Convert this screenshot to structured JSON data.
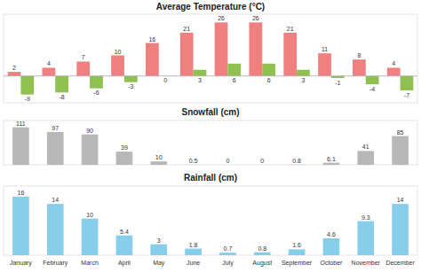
{
  "chart_data": [
    {
      "type": "bar",
      "title": "Average Temperature (°C)",
      "categories": [
        "January",
        "February",
        "March",
        "April",
        "May",
        "June",
        "July",
        "August",
        "September",
        "October",
        "November",
        "December"
      ],
      "series": [
        {
          "color": "#f08080",
          "values": [
            2,
            4,
            7,
            10,
            16,
            21,
            26,
            26,
            21,
            11,
            8,
            4
          ]
        },
        {
          "color": "#90c050",
          "values": [
            -9,
            -8,
            -6,
            -3,
            0,
            3,
            6,
            6,
            3,
            -1,
            -4,
            -7
          ]
        }
      ],
      "ylim": [
        -13,
        30
      ],
      "data_labels": true,
      "tick_labels": false
    },
    {
      "type": "bar",
      "title": "Snowfall (cm)",
      "categories": [
        "January",
        "February",
        "March",
        "April",
        "May",
        "June",
        "July",
        "August",
        "September",
        "October",
        "November",
        "December"
      ],
      "values": [
        111,
        97,
        90,
        39,
        10,
        0.5,
        0,
        0,
        0.8,
        6.1,
        41,
        85
      ],
      "color": "#b8b8b8",
      "ylim": [
        0,
        130.98
      ],
      "data_labels": true,
      "tick_labels": false
    },
    {
      "type": "bar",
      "title": "Rainfall (cm)",
      "categories": [
        "January",
        "February",
        "March",
        "April",
        "May",
        "June",
        "July",
        "August",
        "September",
        "October",
        "November",
        "December"
      ],
      "values": [
        16,
        14,
        10,
        5.4,
        3,
        1.8,
        0.7,
        0.8,
        1.6,
        4.6,
        9.3,
        14
      ],
      "color": "#87ceeb",
      "ylim": [
        0,
        18.88
      ],
      "data_labels": true,
      "tick_labels": "x"
    }
  ]
}
